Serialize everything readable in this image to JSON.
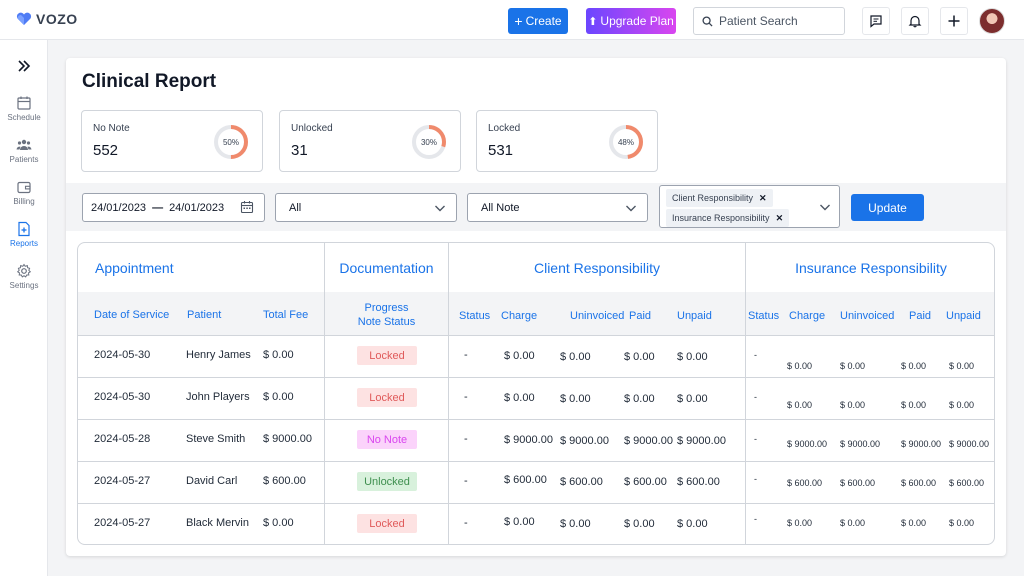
{
  "brand": "VOZO",
  "header": {
    "create_label": "Create",
    "upgrade_label": "Upgrade Plan",
    "search_placeholder": "Patient Search"
  },
  "sidebar": {
    "items": [
      {
        "label": "Schedule",
        "icon": "calendar-icon"
      },
      {
        "label": "Patients",
        "icon": "people-icon"
      },
      {
        "label": "Billing",
        "icon": "wallet-icon"
      },
      {
        "label": "Reports",
        "icon": "report-icon",
        "active": true
      },
      {
        "label": "Settings",
        "icon": "gear-icon"
      }
    ]
  },
  "page_title": "Clinical Report",
  "stats": [
    {
      "label": "No Note",
      "value": "552",
      "percent_text": "50%",
      "percent": 50
    },
    {
      "label": "Unlocked",
      "value": "31",
      "percent_text": "30%",
      "percent": 30
    },
    {
      "label": "Locked",
      "value": "531",
      "percent_text": "48%",
      "percent": 48
    }
  ],
  "filters": {
    "date_from": "24/01/2023",
    "date_sep": "—",
    "date_to": "24/01/2023",
    "select1": "All",
    "select2": "All Note",
    "chips": [
      "Client Responsibility",
      "Insurance Responsibility"
    ],
    "update_label": "Update"
  },
  "table": {
    "groups": [
      "Appointment",
      "Documentation",
      "Client Responsibility",
      "Insurance Responsibility"
    ],
    "subheaders": {
      "date": "Date of Service",
      "patient": "Patient",
      "fee": "Total Fee",
      "progress_1": "Progress",
      "progress_2": "Note Status",
      "c_status": "Status",
      "c_charge": "Charge",
      "c_uninvoiced": "Uninvoiced",
      "c_paid": "Paid",
      "c_unpaid": "Unpaid",
      "i_status": "Status",
      "i_charge": "Charge",
      "i_uninvoiced": "Uninvoiced",
      "i_paid": "Paid",
      "i_unpaid": "Unpaid"
    },
    "rows": [
      {
        "date": "2024-05-30",
        "patient": "Henry James",
        "fee": "$ 0.00",
        "status": "Locked",
        "c_status": "-",
        "c_charge": "$ 0.00",
        "c_uninvoiced": "$ 0.00",
        "c_paid": "$ 0.00",
        "c_unpaid": "$ 0.00",
        "i_status": "-",
        "i_charge": "$ 0.00",
        "i_uninvoiced": "$ 0.00",
        "i_paid": "$ 0.00",
        "i_unpaid": "$ 0.00"
      },
      {
        "date": "2024-05-30",
        "patient": "John Players",
        "fee": "$ 0.00",
        "status": "Locked",
        "c_status": "-",
        "c_charge": "$ 0.00",
        "c_uninvoiced": "$ 0.00",
        "c_paid": "$ 0.00",
        "c_unpaid": "$ 0.00",
        "i_status": "-",
        "i_charge": "$ 0.00",
        "i_uninvoiced": "$ 0.00",
        "i_paid": "$ 0.00",
        "i_unpaid": "$ 0.00"
      },
      {
        "date": "2024-05-28",
        "patient": "Steve Smith",
        "fee": "$ 9000.00",
        "status": "No Note",
        "c_status": "-",
        "c_charge": "$ 9000.00",
        "c_uninvoiced": "$ 9000.00",
        "c_paid": "$ 9000.00",
        "c_unpaid": "$ 9000.00",
        "i_status": "-",
        "i_charge": "$ 9000.00",
        "i_uninvoiced": "$ 9000.00",
        "i_paid": "$ 9000.00",
        "i_unpaid": "$ 9000.00"
      },
      {
        "date": "2024-05-27",
        "patient": "David Carl",
        "fee": "$ 600.00",
        "status": "Unlocked",
        "c_status": "-",
        "c_charge": "$ 600.00",
        "c_uninvoiced": "$ 600.00",
        "c_paid": "$ 600.00",
        "c_unpaid": "$ 600.00",
        "i_status": "-",
        "i_charge": "$ 600.00",
        "i_uninvoiced": "$ 600.00",
        "i_paid": "$ 600.00",
        "i_unpaid": "$ 600.00"
      },
      {
        "date": "2024-05-27",
        "patient": "Black Mervin",
        "fee": "$ 0.00",
        "status": "Locked",
        "c_status": "-",
        "c_charge": "$ 0.00",
        "c_uninvoiced": "$ 0.00",
        "c_paid": "$ 0.00",
        "c_unpaid": "$ 0.00",
        "i_status": "-",
        "i_charge": "$ 0.00",
        "i_uninvoiced": "$ 0.00",
        "i_paid": "$ 0.00",
        "i_unpaid": "$ 0.00"
      }
    ]
  },
  "colors": {
    "primary": "#1a73e8",
    "ring": "#f08a6c",
    "locked_bg": "#fde2e2",
    "locked_fg": "#e05a5a",
    "nonote_bg": "#fbd3fb",
    "nonote_fg": "#d946ef",
    "unlocked_bg": "#d8f1dc",
    "unlocked_fg": "#3f8f4f"
  }
}
